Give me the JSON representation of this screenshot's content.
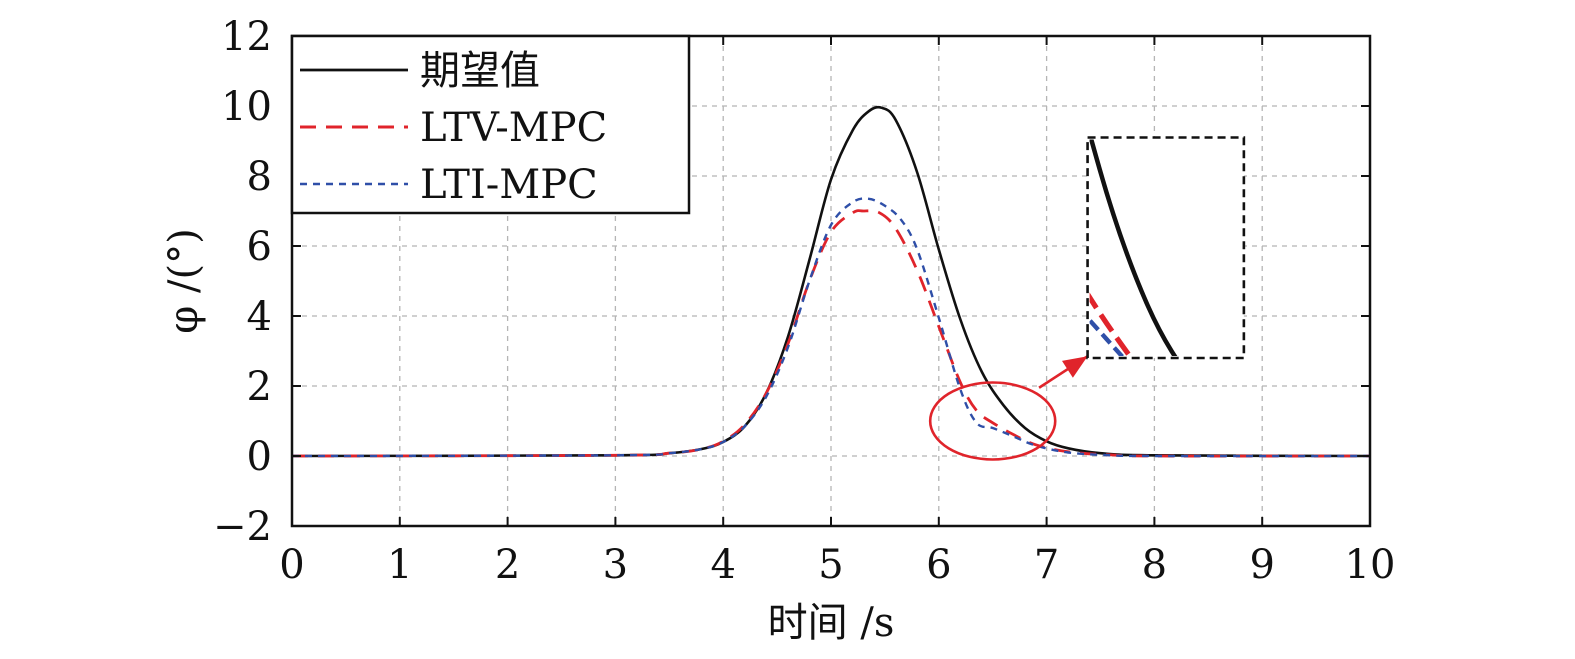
{
  "colors": {
    "desired": "#111111",
    "ltv": "#e0242b",
    "lti": "#2f4fa8",
    "grid": "#b5b5b5",
    "highlight": "#e0242b"
  },
  "chart_data": {
    "type": "line",
    "title": "",
    "xlabel": "时间 /s",
    "ylabel": "φ /(°)",
    "xlim": [
      0,
      10
    ],
    "ylim": [
      -2,
      12
    ],
    "xticks": [
      0,
      1,
      2,
      3,
      4,
      5,
      6,
      7,
      8,
      9,
      10
    ],
    "yticks": [
      -2,
      0,
      2,
      4,
      6,
      8,
      10,
      12
    ],
    "xtick_labels": [
      "0",
      "1",
      "2",
      "3",
      "4",
      "5",
      "6",
      "7",
      "8",
      "9",
      "10"
    ],
    "ytick_labels": [
      "−2",
      "0",
      "2",
      "4",
      "6",
      "8",
      "10",
      "12"
    ],
    "grid": true,
    "legend_position": "top-left",
    "series": [
      {
        "name": "期望值",
        "style": "solid",
        "x": [
          0,
          3.0,
          3.5,
          3.8,
          4.0,
          4.2,
          4.4,
          4.6,
          4.8,
          5.0,
          5.2,
          5.35,
          5.47,
          5.6,
          5.8,
          6.0,
          6.2,
          6.4,
          6.6,
          6.8,
          7.0,
          7.2,
          7.5,
          8.0,
          10
        ],
        "y": [
          0,
          0.02,
          0.08,
          0.2,
          0.4,
          0.85,
          1.8,
          3.4,
          5.6,
          7.9,
          9.3,
          9.85,
          9.95,
          9.6,
          8.1,
          5.9,
          3.9,
          2.4,
          1.45,
          0.8,
          0.42,
          0.22,
          0.08,
          0.02,
          0
        ]
      },
      {
        "name": "LTV-MPC",
        "style": "dashed",
        "x": [
          0,
          3.0,
          3.5,
          3.8,
          4.0,
          4.2,
          4.4,
          4.6,
          4.8,
          5.0,
          5.2,
          5.3,
          5.45,
          5.6,
          5.8,
          6.0,
          6.2,
          6.35,
          6.5,
          6.7,
          6.9,
          7.2,
          7.6,
          8.0,
          10
        ],
        "y": [
          0,
          0.02,
          0.08,
          0.2,
          0.42,
          0.9,
          1.8,
          3.2,
          5.0,
          6.4,
          6.95,
          7.0,
          6.95,
          6.5,
          5.3,
          3.7,
          2.1,
          1.3,
          0.95,
          0.6,
          0.32,
          0.12,
          0.03,
          0,
          0
        ]
      },
      {
        "name": "LTI-MPC",
        "style": "dotted",
        "x": [
          0,
          3.0,
          3.5,
          3.8,
          4.0,
          4.2,
          4.4,
          4.6,
          4.8,
          5.0,
          5.2,
          5.35,
          5.5,
          5.65,
          5.8,
          6.0,
          6.2,
          6.35,
          6.5,
          6.7,
          6.9,
          7.2,
          7.6,
          8.0,
          10
        ],
        "y": [
          0,
          0.02,
          0.08,
          0.2,
          0.4,
          0.85,
          1.7,
          3.1,
          5.0,
          6.6,
          7.25,
          7.35,
          7.15,
          6.75,
          5.9,
          3.95,
          1.9,
          0.95,
          0.8,
          0.55,
          0.3,
          0.1,
          0.02,
          0,
          0
        ]
      }
    ],
    "annotations": [
      {
        "type": "ellipse",
        "center": [
          6.5,
          1.0
        ],
        "radius": [
          0.58,
          1.1
        ]
      },
      {
        "type": "arrow",
        "from": [
          6.93,
          1.95
        ],
        "to": [
          7.38,
          2.85
        ]
      },
      {
        "type": "zoom-inset",
        "source_window": {
          "x": [
            6.55,
            7.2
          ],
          "y": [
            0.55,
            1.6
          ]
        },
        "target_window": {
          "x": [
            7.38,
            8.83
          ],
          "y": [
            2.8,
            9.1
          ]
        }
      }
    ]
  }
}
